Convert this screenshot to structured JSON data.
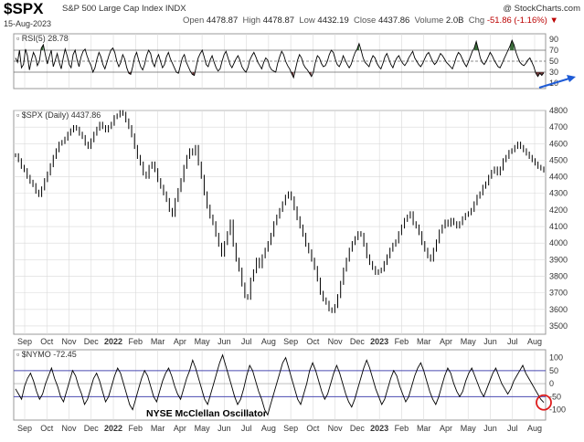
{
  "header": {
    "symbol": "$SPX",
    "name": "S&P 500 Large Cap Index",
    "exchange": "INDX",
    "watermark": "@ StockCharts.com",
    "date": "15-Aug-2023",
    "open_label": "Open",
    "open": "4478.87",
    "high_label": "High",
    "high": "4478.87",
    "low_label": "Low",
    "low": "4432.19",
    "close_label": "Close",
    "close": "4437.86",
    "volume_label": "Volume",
    "volume": "2.0B",
    "chg_label": "Chg",
    "chg": "-51.86 (-1.16%)",
    "chg_arrow": "▼"
  },
  "colors": {
    "price": "#000000",
    "rsi_overbought_fill": "#3a6b3a",
    "rsi_oversold_fill": "#6b3a3a",
    "nymo_band": "#4a4ab0",
    "arrow": "#1e5bd6",
    "circle": "#dd1c1c",
    "grid": "#d9d9d9"
  },
  "chart_data": [
    {
      "type": "line",
      "panel": "rsi",
      "legend": "RSI(5) 28.78",
      "ylim": [
        0,
        100
      ],
      "yticks": [
        10,
        30,
        50,
        70,
        90
      ],
      "reference_lines": [
        30,
        50,
        70
      ],
      "shading": "green above 70, red below 30",
      "last": 28.78,
      "values": [
        56,
        48,
        70,
        38,
        44,
        72,
        60,
        34,
        52,
        66,
        58,
        42,
        50,
        74,
        80,
        62,
        45,
        58,
        70,
        40,
        52,
        64,
        48,
        36,
        56,
        72,
        60,
        44,
        38,
        62,
        70,
        52,
        40,
        58,
        68,
        72,
        60,
        50,
        42,
        30,
        38,
        54,
        66,
        58,
        44,
        36,
        48,
        60,
        70,
        74,
        66,
        50,
        40,
        48,
        62,
        54,
        38,
        28,
        26,
        40,
        58,
        66,
        52,
        40,
        34,
        44,
        60,
        70,
        64,
        48,
        40,
        54,
        62,
        50,
        38,
        44,
        58,
        66,
        54,
        46,
        38,
        30,
        28,
        42,
        56,
        62,
        48,
        40,
        32,
        26,
        24,
        40,
        56,
        64,
        70,
        58,
        44,
        40,
        52,
        60,
        48,
        38,
        32,
        36,
        50,
        62,
        68,
        56,
        44,
        38,
        46,
        54,
        60,
        52,
        40,
        34,
        30,
        38,
        52,
        60,
        66,
        58,
        48,
        42,
        36,
        48,
        56,
        52,
        40,
        34,
        32,
        30,
        46,
        58,
        68,
        62,
        50,
        42,
        36,
        28,
        20,
        36,
        52,
        62,
        56,
        44,
        38,
        34,
        28,
        22,
        30,
        48,
        60,
        56,
        46,
        40,
        42,
        50,
        62,
        70,
        66,
        54,
        44,
        40,
        48,
        60,
        52,
        44,
        38,
        44,
        56,
        66,
        72,
        82,
        70,
        56,
        48,
        44,
        40,
        52,
        60,
        56,
        46,
        40,
        36,
        46,
        58,
        64,
        54,
        44,
        38,
        48,
        56,
        60,
        52,
        46,
        42,
        48,
        56,
        62,
        68,
        56,
        50,
        44,
        40,
        46,
        54,
        62,
        66,
        58,
        50,
        44,
        48,
        56,
        64,
        60,
        54,
        48,
        44,
        40,
        36,
        46,
        58,
        66,
        62,
        54,
        46,
        40,
        48,
        58,
        68,
        74,
        86,
        72,
        56,
        48,
        44,
        50,
        58,
        66,
        60,
        52,
        46,
        40,
        38,
        46,
        54,
        62,
        70,
        78,
        88,
        80,
        66,
        56,
        48,
        44,
        42,
        46,
        52,
        56,
        48,
        40,
        28,
        22,
        28,
        24,
        28.78
      ]
    },
    {
      "type": "line",
      "panel": "price",
      "legend": "$SPX (Daily) 4437.86",
      "ylim": [
        3450,
        4800
      ],
      "yticks": [
        3500,
        3600,
        3700,
        3800,
        3900,
        4000,
        4100,
        4200,
        4300,
        4400,
        4500,
        4600,
        4700,
        4800
      ],
      "x_ticks": [
        "Sep",
        "Oct",
        "Nov",
        "Dec",
        "2022",
        "Feb",
        "Mar",
        "Apr",
        "May",
        "Jun",
        "Jul",
        "Aug",
        "Sep",
        "Oct",
        "Nov",
        "Dec",
        "2023",
        "Feb",
        "Mar",
        "Apr",
        "May",
        "Jun",
        "Jul",
        "Aug"
      ],
      "last": 4437.86,
      "values": [
        4530,
        4500,
        4460,
        4440,
        4400,
        4370,
        4350,
        4310,
        4290,
        4330,
        4380,
        4420,
        4470,
        4520,
        4560,
        4600,
        4610,
        4630,
        4660,
        4680,
        4700,
        4690,
        4660,
        4640,
        4600,
        4580,
        4620,
        4660,
        4690,
        4720,
        4700,
        4680,
        4700,
        4720,
        4760,
        4770,
        4790,
        4780,
        4740,
        4700,
        4650,
        4580,
        4520,
        4480,
        4420,
        4400,
        4460,
        4480,
        4440,
        4380,
        4340,
        4300,
        4260,
        4200,
        4170,
        4260,
        4320,
        4380,
        4460,
        4520,
        4560,
        4540,
        4580,
        4480,
        4400,
        4300,
        4220,
        4160,
        4120,
        4050,
        3990,
        3930,
        4000,
        4060,
        4130,
        3990,
        3900,
        3840,
        3750,
        3680,
        3670,
        3780,
        3830,
        3900,
        3860,
        3920,
        3960,
        4000,
        4050,
        4120,
        4160,
        4200,
        4240,
        4280,
        4300,
        4270,
        4210,
        4150,
        4100,
        4050,
        3990,
        3950,
        3900,
        3850,
        3780,
        3700,
        3660,
        3640,
        3600,
        3590,
        3620,
        3680,
        3760,
        3840,
        3900,
        3960,
        4000,
        4030,
        4060,
        4050,
        3990,
        3920,
        3880,
        3850,
        3820,
        3830,
        3840,
        3880,
        3920,
        3960,
        3990,
        4010,
        4060,
        4100,
        4140,
        4160,
        4180,
        4120,
        4100,
        4060,
        4000,
        3960,
        3920,
        3900,
        3960,
        4010,
        4070,
        4100,
        4130,
        4110,
        4140,
        4120,
        4100,
        4120,
        4150,
        4170,
        4180,
        4200,
        4240,
        4280,
        4300,
        4340,
        4360,
        4400,
        4430,
        4450,
        4420,
        4450,
        4500,
        4520,
        4550,
        4560,
        4580,
        4600,
        4580,
        4560,
        4540,
        4520,
        4500,
        4480,
        4460,
        4450,
        4437.86
      ]
    },
    {
      "type": "line",
      "panel": "nymo",
      "legend": "$NYMO -72.45",
      "annotation": "NYSE McClellan Oscillator",
      "ylim": [
        -140,
        130
      ],
      "yticks": [
        -100,
        -50,
        0,
        50,
        100
      ],
      "reference_lines": [
        -50,
        50
      ],
      "last": -72.45,
      "values": [
        -20,
        -40,
        -60,
        -10,
        20,
        40,
        10,
        -30,
        -60,
        -40,
        0,
        30,
        60,
        20,
        -10,
        -50,
        -70,
        -30,
        10,
        50,
        30,
        -10,
        -40,
        -80,
        -60,
        -20,
        20,
        40,
        10,
        -30,
        -70,
        -50,
        -10,
        30,
        60,
        40,
        0,
        -40,
        -80,
        -100,
        -60,
        -20,
        20,
        50,
        30,
        -10,
        -50,
        -70,
        -30,
        10,
        40,
        60,
        30,
        -10,
        -40,
        -60,
        -20,
        20,
        50,
        90,
        60,
        20,
        -20,
        -60,
        -80,
        -40,
        0,
        40,
        80,
        110,
        70,
        30,
        -10,
        -50,
        -80,
        -60,
        -20,
        30,
        70,
        50,
        10,
        -30,
        -60,
        -100,
        -120,
        -80,
        -40,
        0,
        40,
        80,
        100,
        60,
        20,
        -20,
        -60,
        -80,
        -40,
        0,
        50,
        80,
        50,
        10,
        -30,
        -60,
        -40,
        0,
        40,
        70,
        40,
        0,
        -40,
        -70,
        -90,
        -60,
        -20,
        20,
        60,
        90,
        60,
        20,
        -20,
        -50,
        -80,
        -60,
        -20,
        20,
        50,
        30,
        -10,
        -40,
        -70,
        -50,
        -10,
        30,
        60,
        80,
        50,
        10,
        -30,
        -60,
        -80,
        -50,
        -10,
        30,
        60,
        40,
        0,
        -30,
        -50,
        -30,
        10,
        40,
        60,
        30,
        0,
        -30,
        -50,
        -20,
        10,
        40,
        60,
        30,
        0,
        -20,
        -40,
        -20,
        10,
        30,
        50,
        70,
        40,
        20,
        0,
        -20,
        -40,
        -60,
        -72.45
      ]
    }
  ]
}
